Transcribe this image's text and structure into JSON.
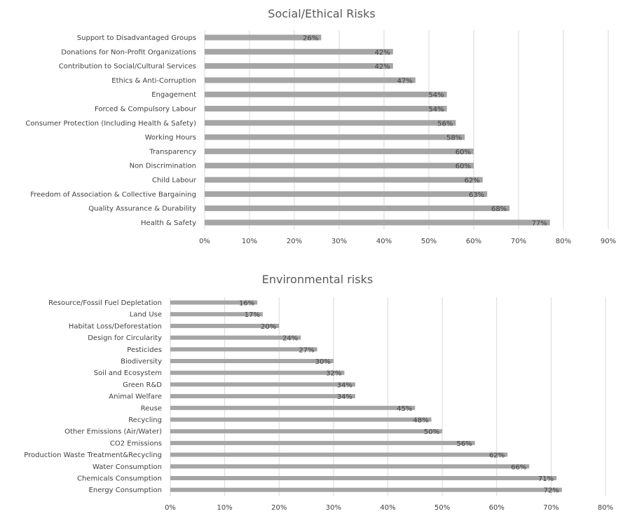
{
  "chart_data": [
    {
      "type": "bar",
      "orientation": "horizontal",
      "title": "Social/Ethical Risks",
      "categories": [
        "Support to Disadvantaged Groups",
        "Donations for Non-Profit Organizations",
        "Contribution to Social/Cultural Services",
        "Ethics & Anti-Corruption",
        "Engagement",
        "Forced & Compulsory Labour",
        "Consumer Protection (Including Health & Safety)",
        "Working Hours",
        "Transparency",
        "Non Discrimination",
        "Child Labour",
        "Freedom of Association & Collective Bargaining",
        "Quality Assurance & Durability",
        "Health & Safety"
      ],
      "values": [
        26,
        42,
        42,
        47,
        54,
        54,
        56,
        58,
        60,
        60,
        62,
        63,
        68,
        77
      ],
      "data_labels": [
        "26%",
        "42%",
        "42%",
        "47%",
        "54%",
        "54%",
        "56%",
        "58%",
        "60%",
        "60%",
        "62%",
        "63%",
        "68%",
        "77%"
      ],
      "xlim": [
        0,
        90
      ],
      "x_ticks": [
        "0%",
        "10%",
        "20%",
        "30%",
        "40%",
        "50%",
        "60%",
        "70%",
        "80%",
        "90%"
      ],
      "grid": true,
      "bar_color": "#a5a5a5"
    },
    {
      "type": "bar",
      "orientation": "horizontal",
      "title": "Environmental risks",
      "categories": [
        "Resource/Fossil Fuel Depletation",
        "Land Use",
        "Habitat Loss/Deforestation",
        "Design for Circularity",
        "Pesticides",
        "Biodiversity",
        "Soil and Ecosystem",
        "Green R&D",
        "Animal Welfare",
        "Reuse",
        "Recycling",
        "Other Emissions (Air/Water)",
        "CO2 Emissions",
        "Production Waste Treatment&Recycling",
        "Water Consumption",
        "Chemicals Consumption",
        "Energy Consumption"
      ],
      "values": [
        16,
        17,
        20,
        24,
        27,
        30,
        32,
        34,
        34,
        45,
        48,
        50,
        56,
        62,
        66,
        71,
        72
      ],
      "data_labels": [
        "16%",
        "17%",
        "20%",
        "24%",
        "27%",
        "30%",
        "32%",
        "34%",
        "34%",
        "45%",
        "48%",
        "50%",
        "56%",
        "62%",
        "66%",
        "71%",
        "72%"
      ],
      "xlim": [
        0,
        80
      ],
      "x_ticks": [
        "0%",
        "10%",
        "20%",
        "30%",
        "40%",
        "50%",
        "60%",
        "70%",
        "80%"
      ],
      "grid": true,
      "bar_color": "#a5a5a5"
    }
  ]
}
